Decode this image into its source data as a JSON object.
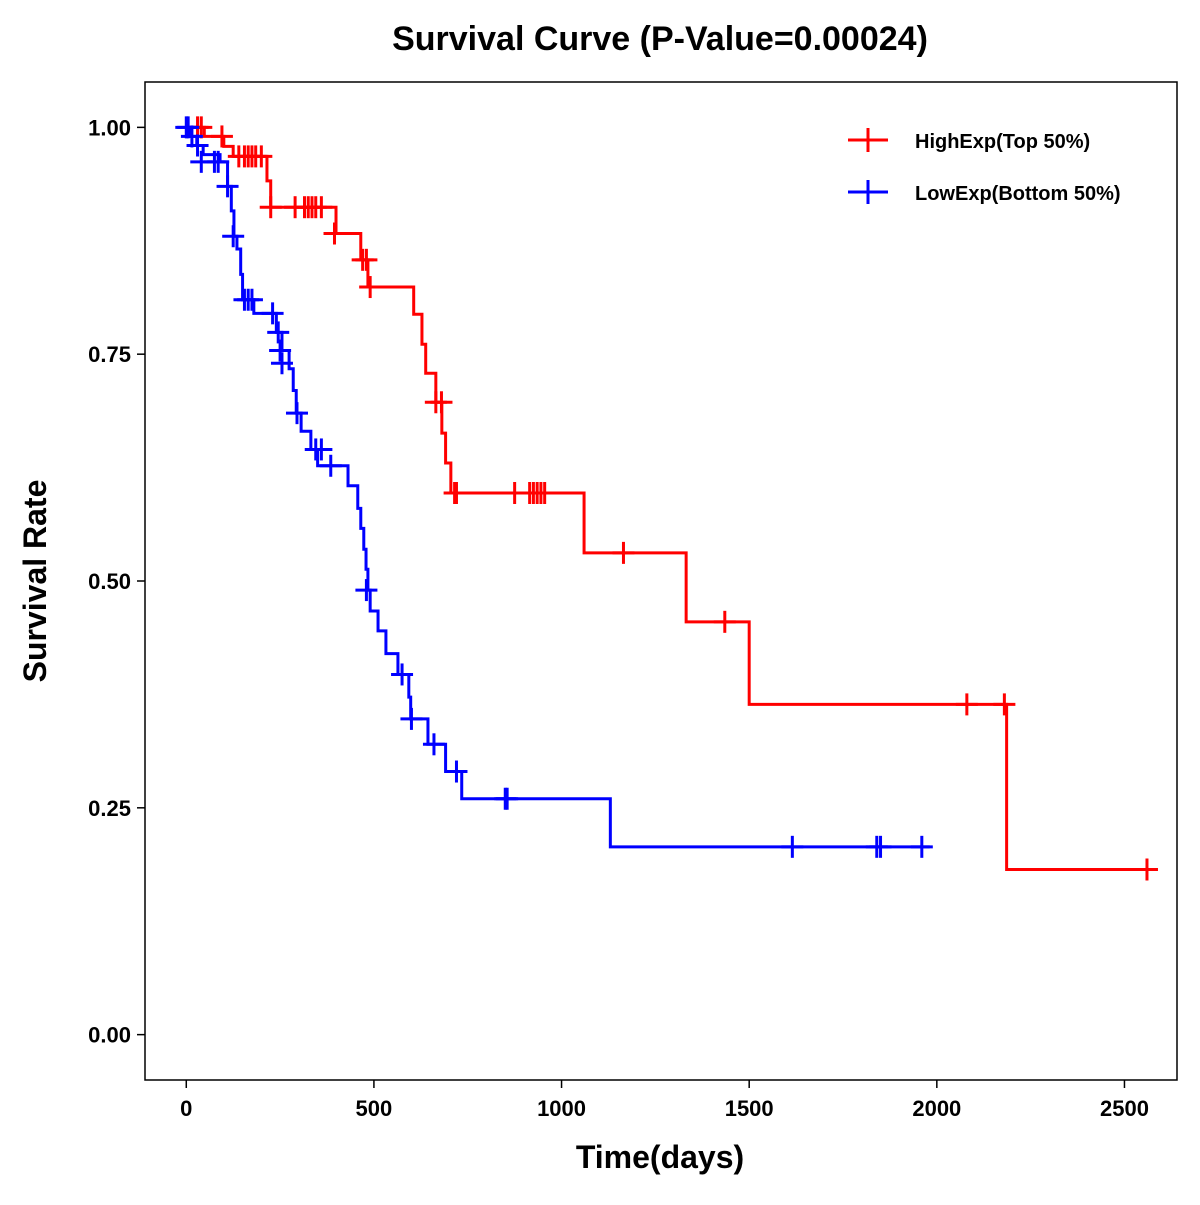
{
  "chart_data": {
    "type": "line",
    "subtype": "kaplan-meier",
    "title": "Survival Curve (P-Value=0.00024)",
    "xlabel": "Time(days)",
    "ylabel": "Survival Rate",
    "xlim": [
      -110,
      2640
    ],
    "ylim": [
      -0.05,
      1.05
    ],
    "xticks": [
      0,
      500,
      1000,
      1500,
      2000,
      2500
    ],
    "xtick_labels": [
      "0",
      "500",
      "1000",
      "1500",
      "2000",
      "2500"
    ],
    "yticks": [
      0,
      0.25,
      0.5,
      0.75,
      1.0
    ],
    "ytick_labels": [
      "0.00",
      "0.25",
      "0.50",
      "0.75",
      "1.00"
    ],
    "grid": false,
    "legend_position": "top-right",
    "series": [
      {
        "name": "HighExp(Top 50%)",
        "color": "#ff0000",
        "end_time": 2566,
        "steps": [
          [
            0,
            1.0
          ],
          [
            48,
            0.99
          ],
          [
            100,
            0.979
          ],
          [
            125,
            0.968
          ],
          [
            215,
            0.941
          ],
          [
            225,
            0.912
          ],
          [
            399,
            0.883
          ],
          [
            465,
            0.854
          ],
          [
            484,
            0.824
          ],
          [
            606,
            0.794
          ],
          [
            628,
            0.761
          ],
          [
            638,
            0.729
          ],
          [
            665,
            0.697
          ],
          [
            681,
            0.663
          ],
          [
            691,
            0.63
          ],
          [
            705,
            0.597
          ],
          [
            1060,
            0.531
          ],
          [
            1332,
            0.455
          ],
          [
            1500,
            0.364
          ],
          [
            2186,
            0.182
          ]
        ],
        "censored": [
          [
            30,
            1.0
          ],
          [
            40,
            1.0
          ],
          [
            95,
            0.99
          ],
          [
            140,
            0.968
          ],
          [
            155,
            0.968
          ],
          [
            165,
            0.968
          ],
          [
            175,
            0.968
          ],
          [
            185,
            0.968
          ],
          [
            200,
            0.968
          ],
          [
            225,
            0.912
          ],
          [
            290,
            0.912
          ],
          [
            315,
            0.912
          ],
          [
            325,
            0.912
          ],
          [
            335,
            0.912
          ],
          [
            345,
            0.912
          ],
          [
            360,
            0.912
          ],
          [
            395,
            0.883
          ],
          [
            470,
            0.854
          ],
          [
            480,
            0.854
          ],
          [
            490,
            0.824
          ],
          [
            665,
            0.697
          ],
          [
            680,
            0.697
          ],
          [
            715,
            0.597
          ],
          [
            720,
            0.597
          ],
          [
            875,
            0.597
          ],
          [
            915,
            0.597
          ],
          [
            925,
            0.597
          ],
          [
            935,
            0.597
          ],
          [
            945,
            0.597
          ],
          [
            955,
            0.597
          ],
          [
            1165,
            0.531
          ],
          [
            1435,
            0.455
          ],
          [
            2080,
            0.364
          ],
          [
            2180,
            0.364
          ],
          [
            2560,
            0.182
          ]
        ]
      },
      {
        "name": "LowExp(Bottom 50%)",
        "color": "#0000ff",
        "end_time": 1981,
        "steps": [
          [
            0,
            1.0
          ],
          [
            12,
            0.99
          ],
          [
            28,
            0.98
          ],
          [
            45,
            0.97
          ],
          [
            90,
            0.962
          ],
          [
            110,
            0.935
          ],
          [
            120,
            0.908
          ],
          [
            127,
            0.88
          ],
          [
            135,
            0.866
          ],
          [
            145,
            0.838
          ],
          [
            150,
            0.81
          ],
          [
            180,
            0.795
          ],
          [
            240,
            0.774
          ],
          [
            255,
            0.754
          ],
          [
            274,
            0.734
          ],
          [
            285,
            0.71
          ],
          [
            293,
            0.685
          ],
          [
            306,
            0.665
          ],
          [
            332,
            0.645
          ],
          [
            350,
            0.627
          ],
          [
            431,
            0.605
          ],
          [
            457,
            0.58
          ],
          [
            465,
            0.558
          ],
          [
            473,
            0.535
          ],
          [
            479,
            0.513
          ],
          [
            484,
            0.49
          ],
          [
            490,
            0.467
          ],
          [
            511,
            0.445
          ],
          [
            532,
            0.42
          ],
          [
            564,
            0.397
          ],
          [
            593,
            0.372
          ],
          [
            598,
            0.348
          ],
          [
            644,
            0.32
          ],
          [
            691,
            0.29
          ],
          [
            734,
            0.26
          ],
          [
            1130,
            0.207
          ]
        ],
        "censored": [
          [
            0,
            1.0
          ],
          [
            5,
            1.0
          ],
          [
            15,
            0.99
          ],
          [
            30,
            0.98
          ],
          [
            40,
            0.962
          ],
          [
            75,
            0.962
          ],
          [
            85,
            0.962
          ],
          [
            110,
            0.935
          ],
          [
            125,
            0.88
          ],
          [
            155,
            0.81
          ],
          [
            165,
            0.81
          ],
          [
            175,
            0.81
          ],
          [
            230,
            0.795
          ],
          [
            245,
            0.774
          ],
          [
            250,
            0.754
          ],
          [
            255,
            0.74
          ],
          [
            295,
            0.685
          ],
          [
            345,
            0.645
          ],
          [
            360,
            0.645
          ],
          [
            385,
            0.627
          ],
          [
            480,
            0.49
          ],
          [
            575,
            0.397
          ],
          [
            600,
            0.348
          ],
          [
            660,
            0.32
          ],
          [
            720,
            0.29
          ],
          [
            850,
            0.26
          ],
          [
            855,
            0.26
          ],
          [
            1615,
            0.207
          ],
          [
            1840,
            0.207
          ],
          [
            1850,
            0.207
          ],
          [
            1960,
            0.207
          ]
        ]
      }
    ]
  }
}
